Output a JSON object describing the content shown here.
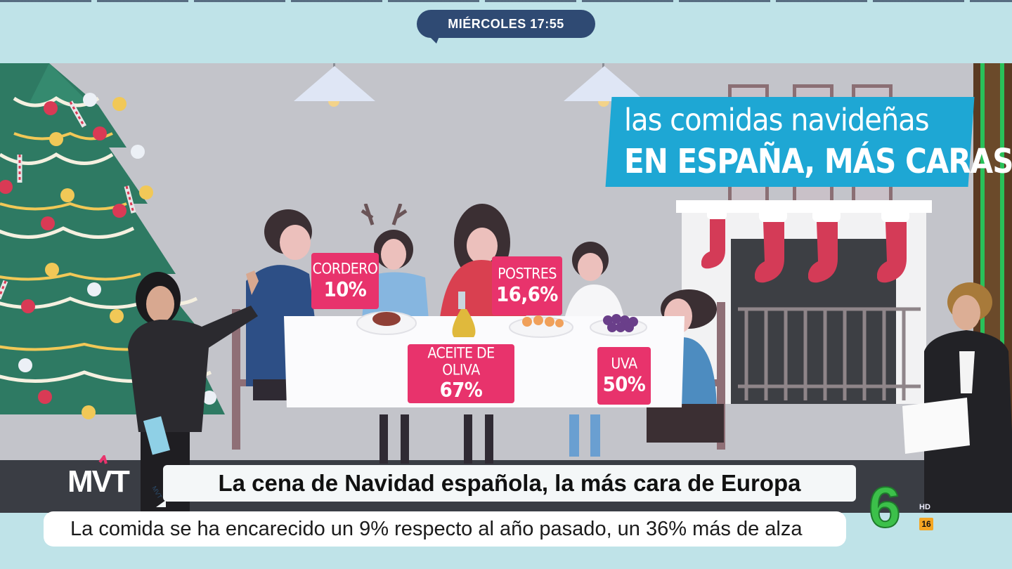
{
  "top": {
    "time_label": "MIÉRCOLES 17:55"
  },
  "graphic": {
    "headline_line1": "las comidas navideñas",
    "headline_line2": "EN ESPAÑA, MÁS CARAS",
    "tags": [
      {
        "label": "CORDERO",
        "value": "10%"
      },
      {
        "label": "POSTRES",
        "value": "16,6%"
      },
      {
        "label": "ACEITE DE OLIVA",
        "value": "67%"
      },
      {
        "label": "UVA",
        "value": "50%"
      }
    ],
    "tag_color": "#e8336c",
    "banner_color": "#1ea7d4"
  },
  "presenter_left": {
    "card_text": "MVT"
  },
  "lower_third": {
    "show_logo": "MVT",
    "headline": "La cena de Navidad española, la más cara de Europa",
    "subtitle": "La comida se ha encarecido un 9% respecto al año pasado, un 36% más de alza"
  },
  "channel": {
    "logo": "6",
    "hd_label": "HD",
    "age_rating": "16",
    "logo_color": "#3cc04a"
  }
}
